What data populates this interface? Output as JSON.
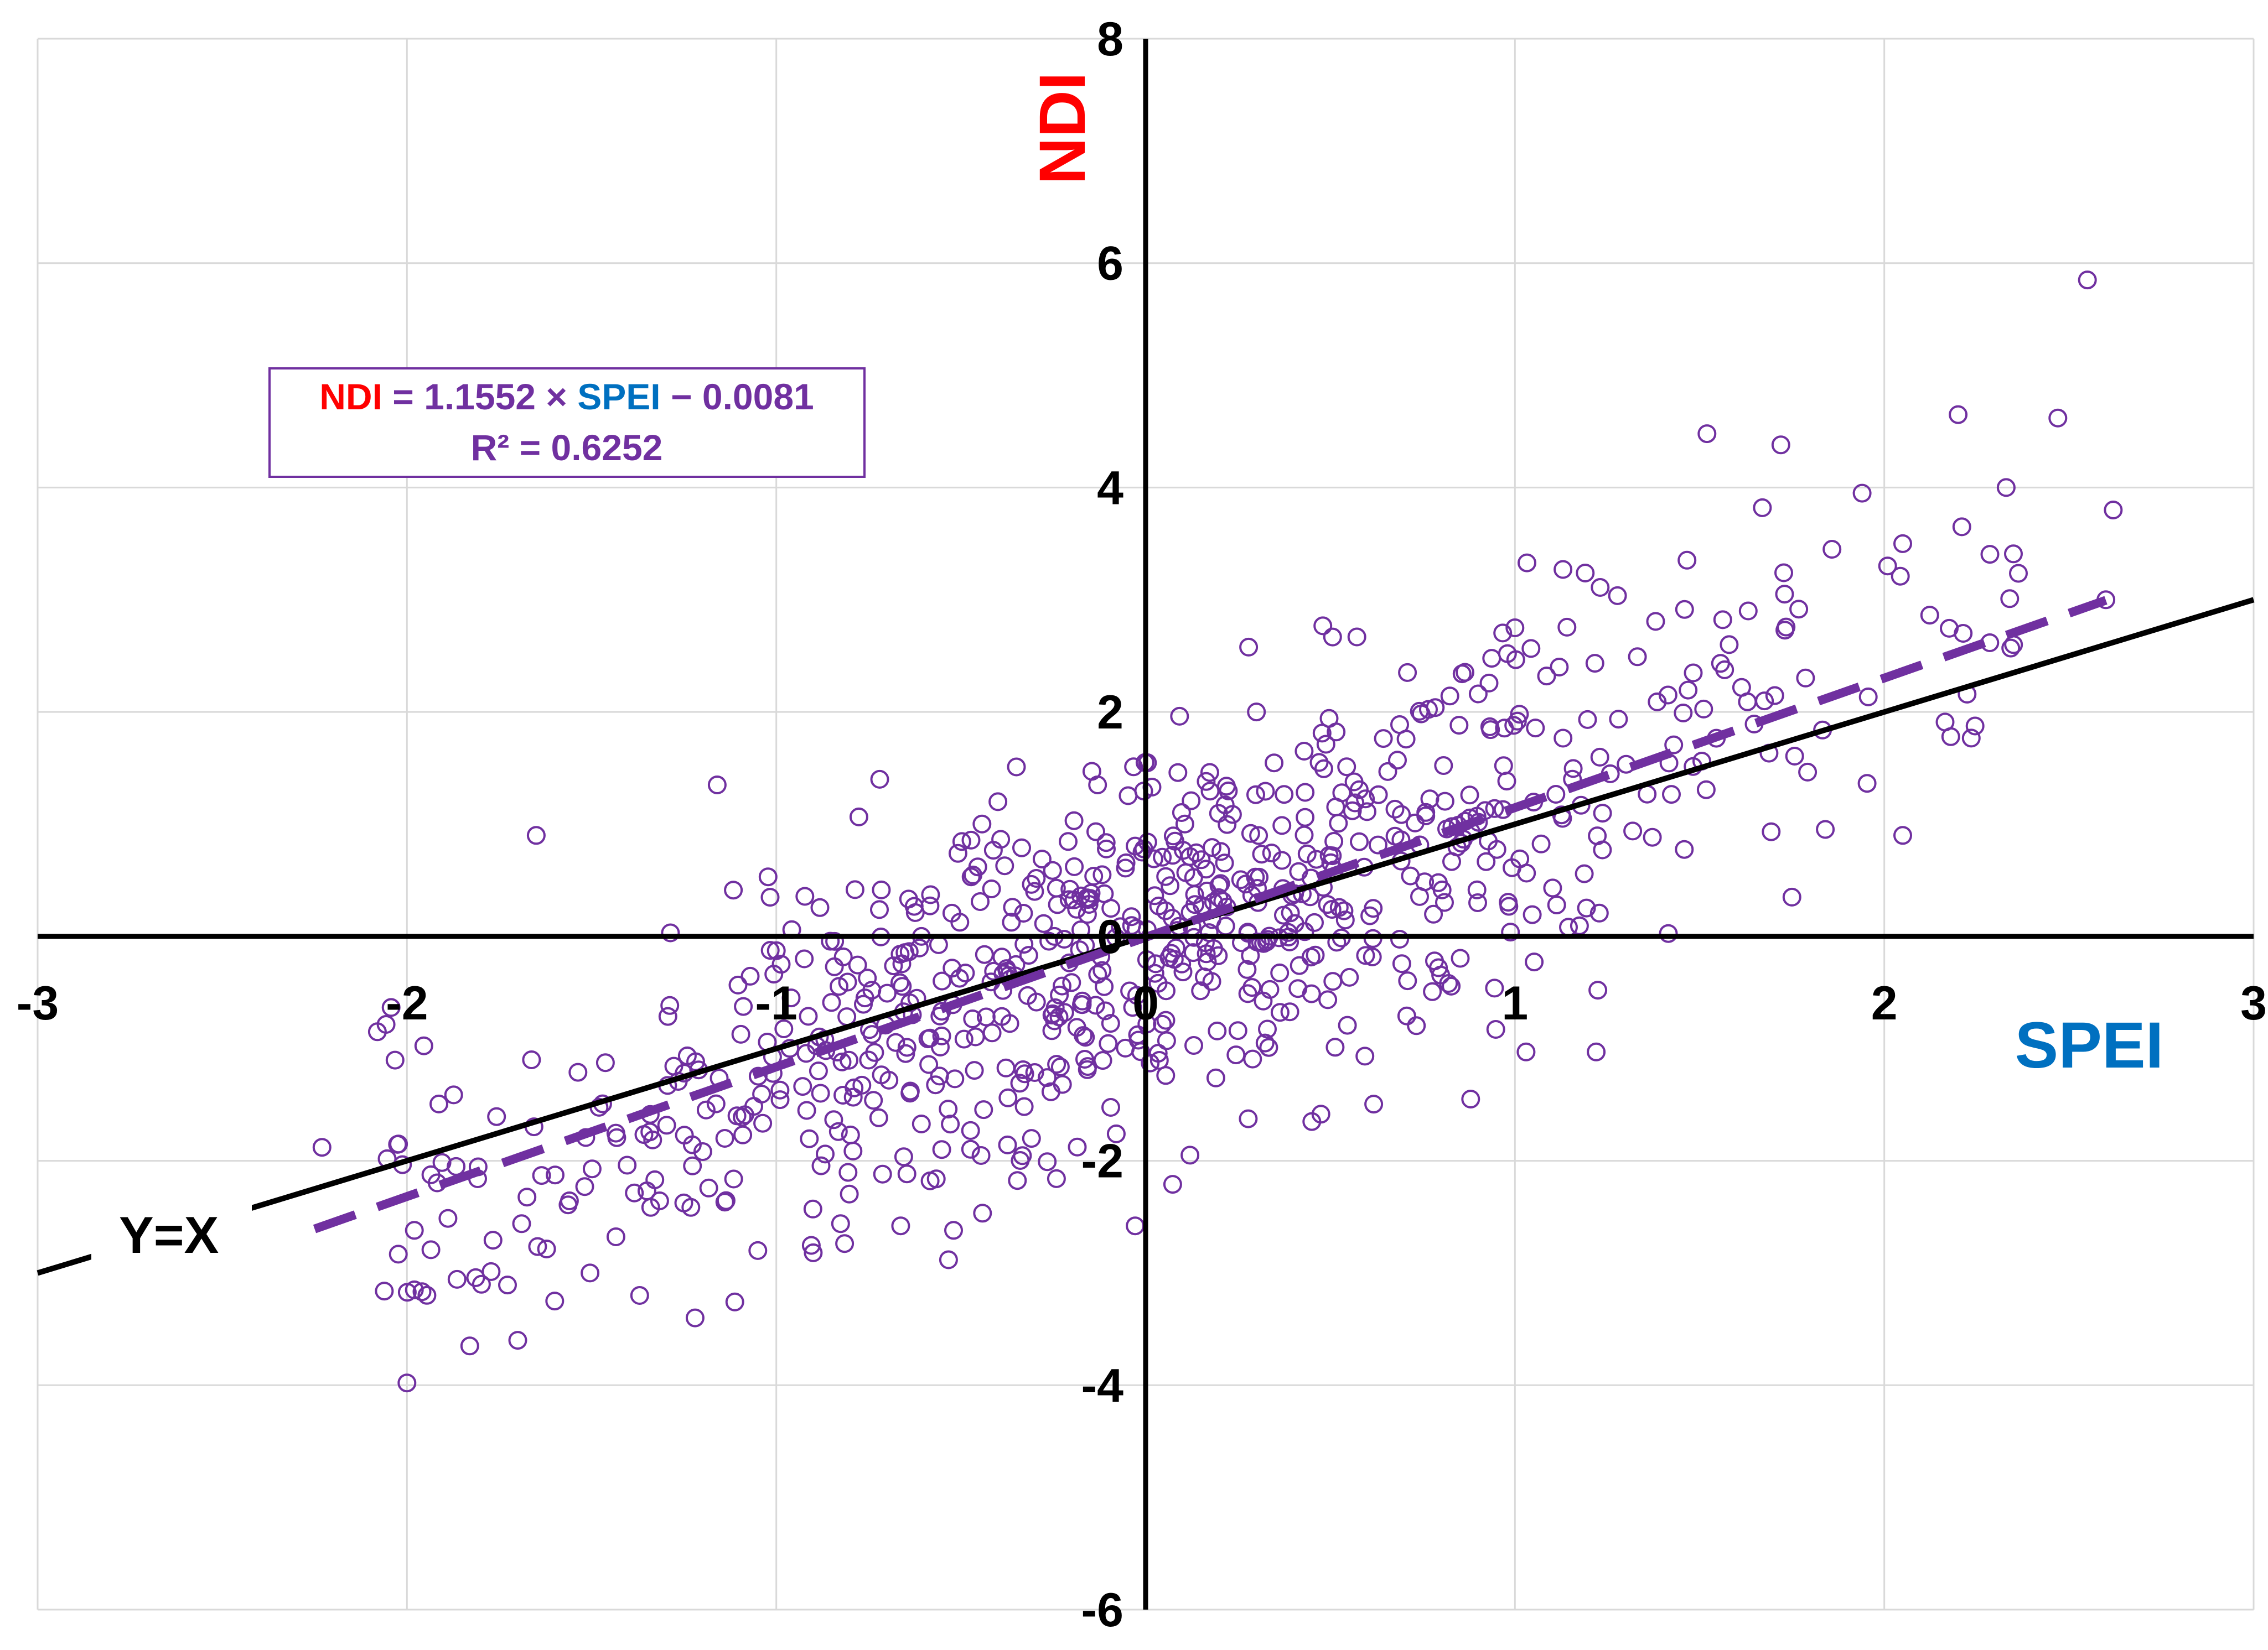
{
  "chart_data": {
    "type": "scatter",
    "xlabel": "SPEI",
    "ylabel": "NDI",
    "xlim": [
      -3,
      3
    ],
    "ylim": [
      -6,
      8
    ],
    "x_ticks": [
      -3,
      -2,
      -1,
      0,
      1,
      2,
      3
    ],
    "y_ticks": [
      -6,
      -4,
      -2,
      0,
      2,
      4,
      6,
      8
    ],
    "grid": true,
    "point_style": "hollow circle",
    "regression": {
      "slope": 1.1552,
      "intercept": -0.0081,
      "r2": 0.6252,
      "x_range": [
        -2.25,
        2.6
      ],
      "style": "dashed"
    },
    "reference_line": {
      "label": "Y=X",
      "x_range": [
        -3,
        3
      ]
    },
    "equation_box": {
      "y_name": "NDI",
      "equals_slope": " = 1.1552 × ",
      "x_name": "SPEI",
      "intercept_text": " − 0.0081",
      "r2_text": "R² = 0.6252"
    },
    "colors": {
      "points": "#7030a0",
      "regression": "#7030a0",
      "reference": "#000000",
      "axes": "#000000",
      "grid": "#d9d9d9",
      "xlabel": "#0070c0",
      "ylabel": "#ff0000"
    },
    "highlight_points": [
      [
        2.55,
        5.85
      ],
      [
        1.52,
        4.48
      ],
      [
        1.72,
        4.38
      ],
      [
        2.2,
        4.65
      ],
      [
        2.47,
        4.62
      ],
      [
        2.33,
        4.0
      ],
      [
        2.62,
        3.8
      ],
      [
        1.94,
        3.95
      ],
      [
        2.21,
        3.65
      ],
      [
        2.05,
        3.5
      ],
      [
        1.13,
        3.27
      ],
      [
        1.67,
        3.82
      ],
      [
        1.73,
        3.05
      ],
      [
        1.0,
        2.75
      ],
      [
        1.12,
        2.4
      ],
      [
        -2.0,
        -3.98
      ],
      [
        -1.83,
        -3.65
      ],
      [
        -1.7,
        -3.6
      ],
      [
        -1.22,
        -3.4
      ],
      [
        -1.37,
        -3.2
      ],
      [
        -1.98,
        -3.15
      ],
      [
        -2.08,
        -0.85
      ],
      [
        -1.65,
        0.9
      ],
      [
        -1.16,
        1.35
      ],
      [
        -0.72,
        1.4
      ],
      [
        -0.4,
        1.2
      ],
      [
        -0.13,
        1.35
      ],
      [
        0.3,
        2.0
      ],
      [
        -0.52,
        -2.62
      ],
      [
        0.12,
        -1.95
      ],
      [
        0.45,
        -1.65
      ],
      [
        0.88,
        -1.45
      ],
      [
        1.03,
        -1.03
      ],
      [
        1.22,
        -1.03
      ],
      [
        -2.23,
        -1.88
      ],
      [
        2.6,
        3.0
      ],
      [
        2.35,
        2.6
      ],
      [
        2.18,
        1.78
      ],
      [
        2.05,
        0.9
      ],
      [
        1.75,
        0.35
      ],
      [
        -1.98,
        -2.62
      ],
      [
        -1.6,
        -3.25
      ],
      [
        -1.05,
        -2.8
      ],
      [
        -0.9,
        -2.82
      ],
      [
        1.58,
        2.6
      ]
    ],
    "n_points": 820,
    "random_seed": 12345
  }
}
